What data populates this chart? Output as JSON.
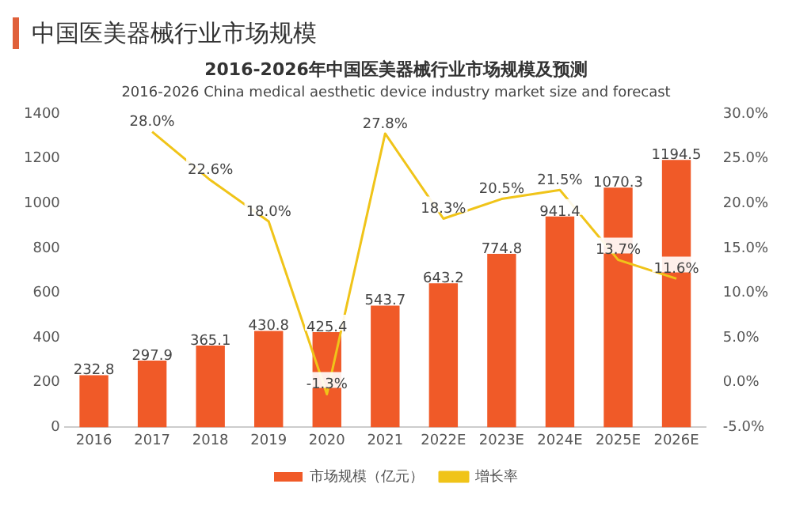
{
  "chart_data": {
    "type": "bar",
    "title": "中国医美器械行业市场规模",
    "subtitle": "2016-2026年中国医美器械行业市场规模及预测",
    "annotations": [
      "2016-2026 China medical aesthetic device industry market size and forecast"
    ],
    "categories": [
      "2016",
      "2017",
      "2018",
      "2019",
      "2020",
      "2021",
      "2022E",
      "2023E",
      "2024E",
      "2025E",
      "2026E"
    ],
    "series": [
      {
        "name": "市场规模（亿元）",
        "color": "#f05a28",
        "values": [
          232.8,
          297.9,
          365.1,
          430.8,
          425.4,
          543.7,
          643.2,
          774.8,
          941.4,
          1070.3,
          1194.5
        ],
        "value_labels": [
          "232.8",
          "297.9",
          "365.1",
          "430.8",
          "425.4",
          "543.7",
          "643.2",
          "774.8",
          "941.4",
          "1070.3",
          "1194.5"
        ]
      },
      {
        "name": "增长率",
        "type": "line",
        "axis": "y2",
        "color": "#f0c419",
        "values": [
          null,
          28.0,
          22.6,
          18.0,
          -1.3,
          27.8,
          18.3,
          20.5,
          21.5,
          13.7,
          11.6
        ],
        "value_labels": [
          null,
          "28.0%",
          "22.6%",
          "18.0%",
          "-1.3%",
          "27.8%",
          "18.3%",
          "20.5%",
          "21.5%",
          "13.7%",
          "11.6%"
        ]
      }
    ],
    "ylim": [
      0,
      1400
    ],
    "yticks": [
      0,
      200,
      400,
      600,
      800,
      1000,
      1200,
      1400
    ],
    "y2lim": [
      -5,
      30
    ],
    "y2ticks": [
      {
        "value": -5,
        "label": "-5.0%"
      },
      {
        "value": 0,
        "label": "0.0%"
      },
      {
        "value": 5,
        "label": "5.0%"
      },
      {
        "value": 10,
        "label": "10.0%"
      },
      {
        "value": 15,
        "label": "15.0%"
      },
      {
        "value": 20,
        "label": "20.0%"
      },
      {
        "value": 25,
        "label": "25.0%"
      },
      {
        "value": 30,
        "label": "30.0%"
      }
    ],
    "grid": false,
    "legend": "bottom",
    "marker": "none"
  }
}
